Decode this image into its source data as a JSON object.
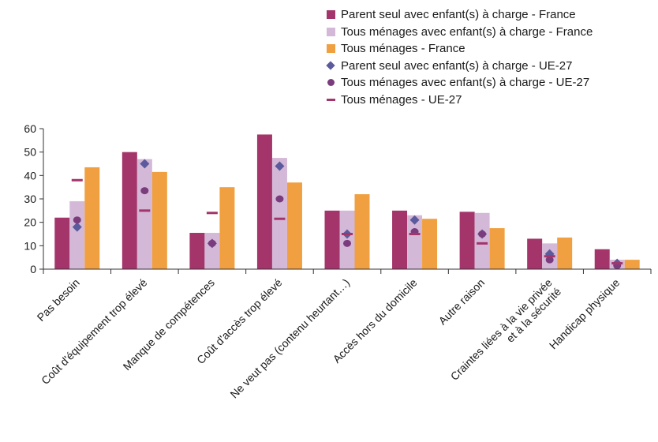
{
  "chart_data": {
    "type": "bar",
    "categories": [
      "Pas besoin",
      "Coût d'équipement trop élevé",
      "Manque de compétences",
      "Coût d'accès trop élevé",
      "Ne veut pas (contenu heurtant…)",
      "Accès hors du domicile",
      "Autre raison",
      [
        "Craintes liées à la vie privée",
        "et à la sécurité"
      ],
      "Handicap physique"
    ],
    "series": [
      {
        "name": "Parent seul avec enfant(s) à charge - France",
        "kind": "bar",
        "color": "#a3356b",
        "values": [
          22,
          50,
          15.5,
          57.5,
          25,
          25,
          24.5,
          13,
          8.5
        ]
      },
      {
        "name": "Tous ménages avec enfant(s) à charge - France",
        "kind": "bar",
        "color": "#d4b8d8",
        "values": [
          29,
          47,
          15.5,
          47.5,
          25,
          23,
          24,
          11,
          4
        ]
      },
      {
        "name": "Tous ménages - France",
        "kind": "bar",
        "color": "#f0a040",
        "values": [
          43.5,
          41.5,
          35,
          37,
          32,
          21.5,
          17.5,
          13.5,
          4
        ]
      },
      {
        "name": "Parent seul avec enfant(s) à charge - UE-27",
        "kind": "diamond",
        "color": "#5b5a9c",
        "values": [
          18,
          45,
          11,
          44,
          15,
          21,
          15,
          6.5,
          2.5
        ]
      },
      {
        "name": "Tous ménages avec enfant(s) à charge - UE-27",
        "kind": "dot",
        "color": "#7a3c7c",
        "values": [
          21,
          33.5,
          11,
          30,
          11,
          16,
          15,
          4,
          1.5
        ]
      },
      {
        "name": "Tous ménages - UE-27",
        "kind": "dash",
        "color": "#a3356b",
        "values": [
          38,
          25,
          24,
          21.5,
          15,
          15,
          11,
          5.5,
          2.5
        ]
      }
    ],
    "yticks": [
      0,
      10,
      20,
      30,
      40,
      50,
      60
    ],
    "ylim": [
      0,
      60
    ],
    "grid": false,
    "legend_position": "top-right",
    "title": "",
    "xlabel": "",
    "ylabel": ""
  }
}
